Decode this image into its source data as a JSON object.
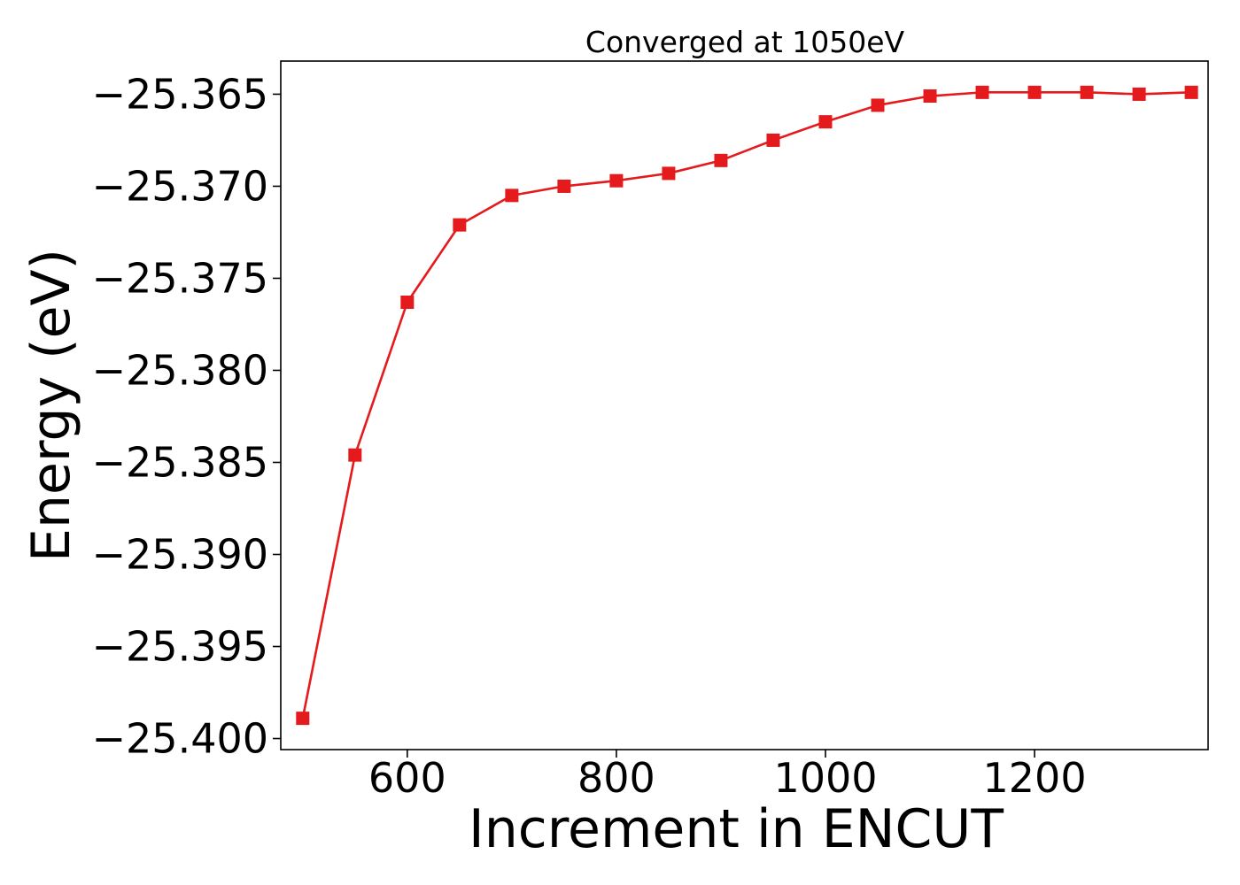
{
  "chart_data": {
    "type": "line",
    "title": "Converged at 1050eV",
    "xlabel": "Increment in ENCUT",
    "ylabel": "Energy (eV)",
    "xlim": [
      479,
      1366
    ],
    "ylim": [
      -25.4006,
      -25.3632
    ],
    "xticks": [
      600,
      800,
      1000,
      1200
    ],
    "xtick_labels": [
      "600",
      "800",
      "1000",
      "1200"
    ],
    "yticks": [
      -25.365,
      -25.37,
      -25.375,
      -25.38,
      -25.385,
      -25.39,
      -25.395,
      -25.4
    ],
    "ytick_labels": [
      "−25.365",
      "−25.370",
      "−25.375",
      "−25.380",
      "−25.385",
      "−25.390",
      "−25.395",
      "−25.400"
    ],
    "grid": false,
    "color": "#e41a1c",
    "marker": "square",
    "series": [
      {
        "x": [
          500,
          550,
          600,
          650,
          700,
          750,
          800,
          850,
          900,
          950,
          1000,
          1050,
          1100,
          1150,
          1200,
          1250,
          1300,
          1350
        ],
        "y": [
          -25.3989,
          -25.3846,
          -25.3763,
          -25.3721,
          -25.3705,
          -25.37,
          -25.3697,
          -25.3693,
          -25.3686,
          -25.3675,
          -25.3665,
          -25.3656,
          -25.3651,
          -25.3649,
          -25.3649,
          -25.3649,
          -25.365,
          -25.3649
        ]
      }
    ]
  }
}
